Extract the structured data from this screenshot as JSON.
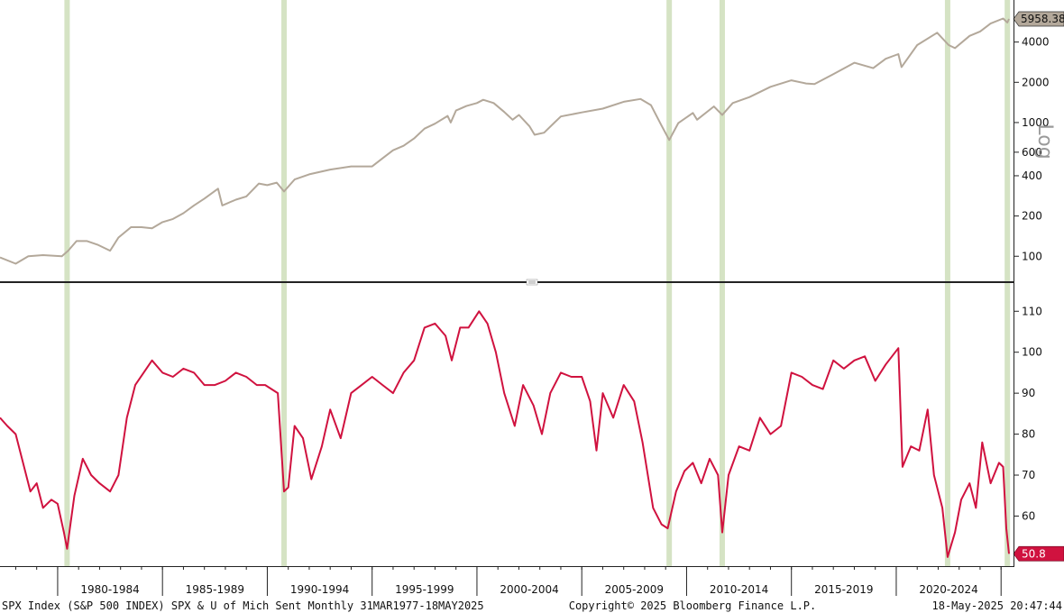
{
  "chart_data": [
    {
      "panel": "top",
      "type": "line",
      "scale": "log",
      "series_color": "#b3a89a",
      "unit_label": "Log",
      "yticks": [
        100,
        200,
        400,
        600,
        1000,
        2000,
        4000
      ],
      "ylim": [
        65,
        8000
      ],
      "last_value_label": "5958.38",
      "last_value": 5958.38,
      "points": [
        [
          1977.25,
          98
        ],
        [
          1978.0,
          88
        ],
        [
          1978.6,
          100
        ],
        [
          1979.3,
          102
        ],
        [
          1980.2,
          100
        ],
        [
          1980.5,
          110
        ],
        [
          1980.9,
          130
        ],
        [
          1981.4,
          130
        ],
        [
          1981.9,
          122
        ],
        [
          1982.5,
          110
        ],
        [
          1982.9,
          138
        ],
        [
          1983.5,
          165
        ],
        [
          1984.0,
          165
        ],
        [
          1984.5,
          162
        ],
        [
          1985.0,
          180
        ],
        [
          1985.5,
          190
        ],
        [
          1986.0,
          210
        ],
        [
          1986.5,
          240
        ],
        [
          1987.0,
          270
        ],
        [
          1987.65,
          320
        ],
        [
          1987.85,
          240
        ],
        [
          1988.5,
          265
        ],
        [
          1989.0,
          280
        ],
        [
          1989.6,
          350
        ],
        [
          1990.0,
          340
        ],
        [
          1990.45,
          355
        ],
        [
          1990.8,
          305
        ],
        [
          1991.3,
          375
        ],
        [
          1992.0,
          410
        ],
        [
          1993.0,
          445
        ],
        [
          1994.0,
          470
        ],
        [
          1995.0,
          470
        ],
        [
          1995.5,
          540
        ],
        [
          1996.0,
          620
        ],
        [
          1996.5,
          670
        ],
        [
          1997.0,
          760
        ],
        [
          1997.5,
          900
        ],
        [
          1998.0,
          980
        ],
        [
          1998.6,
          1120
        ],
        [
          1998.75,
          1000
        ],
        [
          1999.0,
          1230
        ],
        [
          1999.5,
          1330
        ],
        [
          2000.0,
          1400
        ],
        [
          2000.3,
          1480
        ],
        [
          2000.8,
          1400
        ],
        [
          2001.3,
          1200
        ],
        [
          2001.7,
          1050
        ],
        [
          2002.0,
          1140
        ],
        [
          2002.5,
          940
        ],
        [
          2002.75,
          810
        ],
        [
          2003.2,
          840
        ],
        [
          2003.7,
          1000
        ],
        [
          2004.0,
          1110
        ],
        [
          2005.0,
          1190
        ],
        [
          2006.0,
          1270
        ],
        [
          2007.0,
          1430
        ],
        [
          2007.8,
          1500
        ],
        [
          2008.3,
          1350
        ],
        [
          2008.8,
          950
        ],
        [
          2009.17,
          740
        ],
        [
          2009.6,
          990
        ],
        [
          2010.3,
          1180
        ],
        [
          2010.5,
          1050
        ],
        [
          2011.3,
          1320
        ],
        [
          2011.7,
          1140
        ],
        [
          2012.2,
          1400
        ],
        [
          2013.0,
          1550
        ],
        [
          2014.0,
          1850
        ],
        [
          2015.0,
          2070
        ],
        [
          2015.7,
          1960
        ],
        [
          2016.1,
          1940
        ],
        [
          2017.0,
          2300
        ],
        [
          2018.0,
          2800
        ],
        [
          2018.9,
          2550
        ],
        [
          2019.5,
          3000
        ],
        [
          2020.1,
          3250
        ],
        [
          2020.25,
          2600
        ],
        [
          2021.0,
          3800
        ],
        [
          2021.95,
          4700
        ],
        [
          2022.5,
          3800
        ],
        [
          2022.8,
          3600
        ],
        [
          2023.5,
          4450
        ],
        [
          2024.0,
          4800
        ],
        [
          2024.5,
          5500
        ],
        [
          2025.1,
          6000
        ],
        [
          2025.3,
          5600
        ],
        [
          2025.38,
          5958.38
        ]
      ]
    },
    {
      "panel": "bottom",
      "type": "line",
      "series_color": "#d0123f",
      "yticks": [
        60,
        70,
        80,
        90,
        100,
        110
      ],
      "ylim": [
        48,
        116
      ],
      "last_value_label": "50.8",
      "last_value": 50.8,
      "points": [
        [
          1977.25,
          84
        ],
        [
          1977.6,
          82
        ],
        [
          1978.0,
          80
        ],
        [
          1978.4,
          72
        ],
        [
          1978.7,
          66
        ],
        [
          1979.0,
          68
        ],
        [
          1979.3,
          62
        ],
        [
          1979.7,
          64
        ],
        [
          1980.0,
          63
        ],
        [
          1980.3,
          56
        ],
        [
          1980.45,
          52
        ],
        [
          1980.8,
          65
        ],
        [
          1981.2,
          74
        ],
        [
          1981.6,
          70
        ],
        [
          1982.0,
          68
        ],
        [
          1982.5,
          66
        ],
        [
          1982.9,
          70
        ],
        [
          1983.3,
          84
        ],
        [
          1983.7,
          92
        ],
        [
          1984.1,
          95
        ],
        [
          1984.5,
          98
        ],
        [
          1985.0,
          95
        ],
        [
          1985.5,
          94
        ],
        [
          1986.0,
          96
        ],
        [
          1986.5,
          95
        ],
        [
          1987.0,
          92
        ],
        [
          1987.5,
          92
        ],
        [
          1988.0,
          93
        ],
        [
          1988.5,
          95
        ],
        [
          1989.0,
          94
        ],
        [
          1989.5,
          92
        ],
        [
          1989.9,
          92
        ],
        [
          1990.5,
          90
        ],
        [
          1990.8,
          66
        ],
        [
          1991.0,
          67
        ],
        [
          1991.3,
          82
        ],
        [
          1991.7,
          79
        ],
        [
          1992.1,
          69
        ],
        [
          1992.6,
          77
        ],
        [
          1993.0,
          86
        ],
        [
          1993.5,
          79
        ],
        [
          1994.0,
          90
        ],
        [
          1994.5,
          92
        ],
        [
          1995.0,
          94
        ],
        [
          1995.5,
          92
        ],
        [
          1996.0,
          90
        ],
        [
          1996.5,
          95
        ],
        [
          1997.0,
          98
        ],
        [
          1997.5,
          106
        ],
        [
          1998.0,
          107
        ],
        [
          1998.5,
          104
        ],
        [
          1998.8,
          98
        ],
        [
          1999.2,
          106
        ],
        [
          1999.6,
          106
        ],
        [
          2000.1,
          110
        ],
        [
          2000.5,
          107
        ],
        [
          2000.9,
          100
        ],
        [
          2001.3,
          90
        ],
        [
          2001.8,
          82
        ],
        [
          2002.2,
          92
        ],
        [
          2002.7,
          87
        ],
        [
          2003.1,
          80
        ],
        [
          2003.5,
          90
        ],
        [
          2004.0,
          95
        ],
        [
          2004.5,
          94
        ],
        [
          2005.0,
          94
        ],
        [
          2005.4,
          88
        ],
        [
          2005.7,
          76
        ],
        [
          2006.0,
          90
        ],
        [
          2006.5,
          84
        ],
        [
          2007.0,
          92
        ],
        [
          2007.5,
          88
        ],
        [
          2007.9,
          78
        ],
        [
          2008.4,
          62
        ],
        [
          2008.8,
          58
        ],
        [
          2009.1,
          57
        ],
        [
          2009.5,
          66
        ],
        [
          2009.9,
          71
        ],
        [
          2010.3,
          73
        ],
        [
          2010.7,
          68
        ],
        [
          2011.1,
          74
        ],
        [
          2011.5,
          70
        ],
        [
          2011.7,
          56
        ],
        [
          2012.0,
          70
        ],
        [
          2012.5,
          77
        ],
        [
          2013.0,
          76
        ],
        [
          2013.5,
          84
        ],
        [
          2014.0,
          80
        ],
        [
          2014.5,
          82
        ],
        [
          2015.0,
          95
        ],
        [
          2015.5,
          94
        ],
        [
          2016.0,
          92
        ],
        [
          2016.5,
          91
        ],
        [
          2017.0,
          98
        ],
        [
          2017.5,
          96
        ],
        [
          2018.0,
          98
        ],
        [
          2018.5,
          99
        ],
        [
          2019.0,
          93
        ],
        [
          2019.5,
          97
        ],
        [
          2020.1,
          101
        ],
        [
          2020.3,
          72
        ],
        [
          2020.7,
          77
        ],
        [
          2021.1,
          76
        ],
        [
          2021.5,
          86
        ],
        [
          2021.8,
          70
        ],
        [
          2022.2,
          62
        ],
        [
          2022.45,
          50
        ],
        [
          2022.8,
          56
        ],
        [
          2023.1,
          64
        ],
        [
          2023.5,
          68
        ],
        [
          2023.8,
          62
        ],
        [
          2024.1,
          78
        ],
        [
          2024.5,
          68
        ],
        [
          2024.9,
          73
        ],
        [
          2025.1,
          72
        ],
        [
          2025.25,
          57
        ],
        [
          2025.38,
          50.8
        ]
      ]
    }
  ],
  "recession_bars": [
    1980.45,
    1990.8,
    2009.17,
    2011.7,
    2022.45,
    2025.3
  ],
  "x_axis": {
    "labels": [
      {
        "text": "1980-1984",
        "from": 1980,
        "to": 1985
      },
      {
        "text": "1985-1989",
        "from": 1985,
        "to": 1990
      },
      {
        "text": "1990-1994",
        "from": 1990,
        "to": 1995
      },
      {
        "text": "1995-1999",
        "from": 1995,
        "to": 2000
      },
      {
        "text": "2000-2004",
        "from": 2000,
        "to": 2005
      },
      {
        "text": "2005-2009",
        "from": 2005,
        "to": 2010
      },
      {
        "text": "2010-2014",
        "from": 2010,
        "to": 2015
      },
      {
        "text": "2015-2019",
        "from": 2015,
        "to": 2020
      },
      {
        "text": "2020-2024",
        "from": 2020,
        "to": 2025
      }
    ]
  },
  "footer": {
    "left": "SPX Index (S&P 500 INDEX) SPX & U of Mich Sent  Monthly 31MAR1977-18MAY2025",
    "center": "Copyright© 2025 Bloomberg Finance L.P.",
    "right": "18-May-2025 20:47:44"
  }
}
